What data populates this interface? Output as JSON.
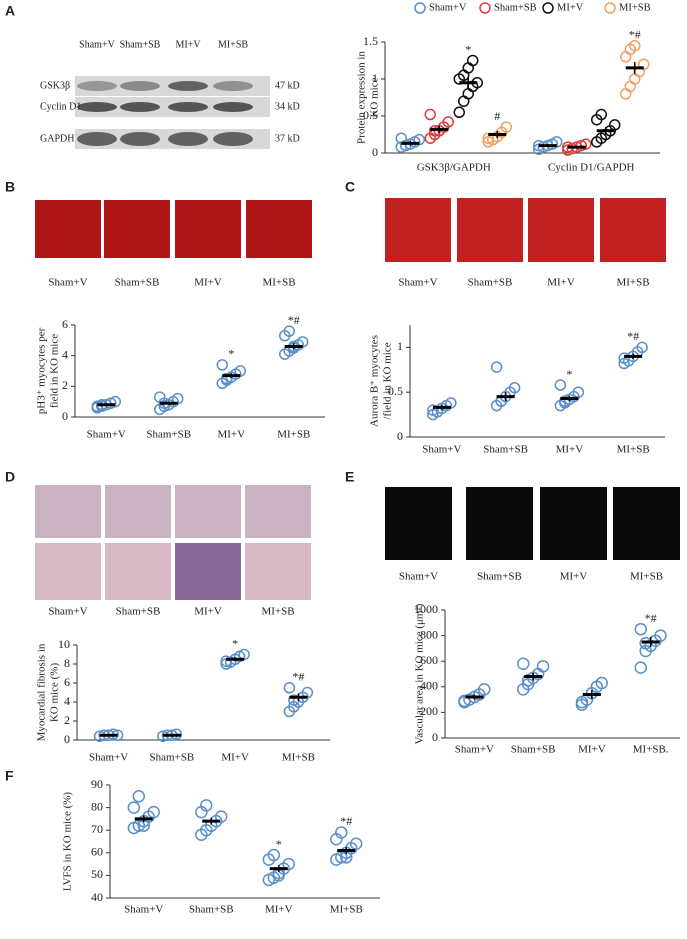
{
  "panel_letters": [
    "A",
    "B",
    "C",
    "D",
    "E",
    "F"
  ],
  "blot": {
    "lanes": [
      "Sham+V",
      "Sham+SB",
      "MI+V",
      "MI+SB"
    ],
    "rows": [
      "GSK3β",
      "Cyclin D1",
      "GAPDH"
    ],
    "sizes": [
      "47 kD",
      "34 kD",
      "37 kD"
    ]
  },
  "image_labels": [
    [
      "Sham+V",
      "Sham+SB",
      "MI+V",
      "MI+SB"
    ],
    [
      "Sham+V",
      "Sham+SB",
      "MI+V",
      "MI+SB"
    ],
    [
      "Sham+V",
      "Sham+SB",
      "MI+V",
      "MI+SB"
    ],
    [
      "Sham+V",
      "Sham+SB",
      "MI+V",
      "MI+SB"
    ]
  ],
  "chart_data": [
    {
      "type": "grouped-dot",
      "ylabel": [
        "Protein expression in",
        "KO mice"
      ],
      "ylim": [
        0,
        1.5
      ],
      "yticks": [
        0,
        0.5,
        1,
        1.5
      ],
      "categories": [
        "GSK3β/GAPDH",
        "Cyclin D1/GAPDH"
      ],
      "series": [
        {
          "name": "Sham+V",
          "color": "#5b8fc9",
          "points": [
            [
              0.08,
              0.1,
              0.12,
              0.15,
              0.18,
              0.2,
              0.1
            ],
            [
              0.05,
              0.08,
              0.1,
              0.12,
              0.15,
              0.1
            ]
          ],
          "means": [
            0.13,
            0.1
          ],
          "errors": [
            0.03,
            0.02
          ],
          "annotations": [
            null,
            null
          ]
        },
        {
          "name": "Sham+SB",
          "color": "#e03a3a",
          "points": [
            [
              0.2,
              0.25,
              0.3,
              0.35,
              0.42,
              0.52,
              0.3
            ],
            [
              0.04,
              0.06,
              0.08,
              0.1,
              0.12,
              0.08
            ]
          ],
          "means": [
            0.32,
            0.08
          ],
          "errors": [
            0.05,
            0.02
          ],
          "annotations": [
            null,
            null
          ]
        },
        {
          "name": "MI+V",
          "color": "#111111",
          "points": [
            [
              0.55,
              0.7,
              0.8,
              0.9,
              0.95,
              1.0,
              1.05,
              1.15,
              1.25
            ],
            [
              0.15,
              0.2,
              0.25,
              0.3,
              0.38,
              0.45,
              0.52
            ]
          ],
          "means": [
            0.95,
            0.3
          ],
          "errors": [
            0.08,
            0.05
          ],
          "annotations": [
            "*",
            null
          ]
        },
        {
          "name": "MI+SB",
          "color": "#f0a060",
          "points": [
            [
              0.15,
              0.18,
              0.22,
              0.28,
              0.35,
              0.2
            ],
            [
              0.8,
              0.9,
              1.0,
              1.1,
              1.2,
              1.3,
              1.4,
              1.45
            ]
          ],
          "means": [
            0.25,
            1.15
          ],
          "errors": [
            0.05,
            0.08
          ],
          "annotations": [
            "#",
            "*#"
          ]
        }
      ]
    },
    {
      "type": "dot",
      "ylabel": [
        "pH3⁺ myocytes per",
        "field in KO mice"
      ],
      "ylim": [
        0,
        6
      ],
      "yticks": [
        0,
        2,
        4,
        6
      ],
      "color": "#5b8fc9",
      "categories": [
        "Sham+V",
        "Sham+SB",
        "MI+V",
        "MI+SB"
      ],
      "points": [
        [
          0.6,
          0.7,
          0.8,
          0.9,
          1.0,
          0.7,
          0.8
        ],
        [
          0.5,
          0.7,
          0.8,
          1.0,
          1.2,
          1.3,
          0.9
        ],
        [
          2.2,
          2.4,
          2.6,
          2.8,
          3.0,
          3.4,
          2.5
        ],
        [
          4.1,
          4.3,
          4.5,
          4.7,
          4.9,
          5.3,
          5.6,
          4.6
        ]
      ],
      "means": [
        0.8,
        0.9,
        2.7,
        4.6
      ],
      "errors": [
        0.1,
        0.1,
        0.15,
        0.2
      ],
      "annotations": [
        null,
        null,
        "*",
        "*#"
      ]
    },
    {
      "type": "dot",
      "ylabel": [
        "Aurora B⁺ myocytes",
        "/field in KO mice"
      ],
      "ylim": [
        0,
        1.25
      ],
      "yticks": [
        0,
        0.5,
        1
      ],
      "color": "#5b8fc9",
      "categories": [
        "Sham+V",
        "Sham+SB",
        "MI+V",
        "MI+SB"
      ],
      "points": [
        [
          0.25,
          0.28,
          0.32,
          0.35,
          0.38,
          0.3
        ],
        [
          0.35,
          0.4,
          0.45,
          0.5,
          0.55,
          0.78,
          0.4
        ],
        [
          0.35,
          0.38,
          0.42,
          0.45,
          0.5,
          0.58,
          0.4
        ],
        [
          0.82,
          0.85,
          0.9,
          0.95,
          1.0,
          0.88
        ]
      ],
      "means": [
        0.33,
        0.45,
        0.43,
        0.9
      ],
      "errors": [
        0.03,
        0.05,
        0.03,
        0.03
      ],
      "annotations": [
        null,
        null,
        "*",
        "*#"
      ]
    },
    {
      "type": "dot",
      "ylabel": [
        "Myocardial fibrosis in",
        "KO mice (%)"
      ],
      "ylim": [
        0,
        10
      ],
      "yticks": [
        0,
        2,
        4,
        6,
        8,
        10
      ],
      "color": "#5b8fc9",
      "categories": [
        "Sham+V",
        "Sham+SB",
        "MI+V",
        "MI+SB"
      ],
      "points": [
        [
          0.4,
          0.5,
          0.5,
          0.6,
          0.5
        ],
        [
          0.4,
          0.5,
          0.5,
          0.6
        ],
        [
          8.0,
          8.2,
          8.5,
          8.8,
          9.0,
          8.3
        ],
        [
          3.0,
          3.5,
          4.0,
          4.5,
          5.0,
          5.5,
          4.2
        ]
      ],
      "means": [
        0.5,
        0.5,
        8.5,
        4.5
      ],
      "errors": [
        0.05,
        0.05,
        0.2,
        0.4
      ],
      "annotations": [
        null,
        null,
        "*",
        "*#"
      ]
    },
    {
      "type": "dot",
      "ylabel": [
        "Vascular area in KO mice (μm²)"
      ],
      "ylim": [
        0,
        1000
      ],
      "yticks": [
        0,
        200,
        400,
        600,
        800,
        1000
      ],
      "color": "#5b8fc9",
      "categories": [
        "Sham+V",
        "Sham+SB",
        "MI+V",
        "MI+SB."
      ],
      "points": [
        [
          280,
          300,
          320,
          340,
          380,
          290
        ],
        [
          380,
          420,
          470,
          500,
          560,
          580,
          450
        ],
        [
          260,
          300,
          350,
          400,
          430,
          280
        ],
        [
          550,
          680,
          720,
          760,
          800,
          850,
          740
        ]
      ],
      "means": [
        320,
        480,
        340,
        750
      ],
      "errors": [
        20,
        30,
        35,
        40
      ],
      "annotations": [
        null,
        null,
        null,
        "*#"
      ]
    },
    {
      "type": "dot",
      "ylabel": [
        "LVFS in KO mice (%)"
      ],
      "ylim": [
        40,
        90
      ],
      "yticks": [
        40,
        50,
        60,
        70,
        80,
        90
      ],
      "color": "#5b8fc9",
      "categories": [
        "Sham+V",
        "Sham+SB",
        "MI+V",
        "MI+SB"
      ],
      "points": [
        [
          71,
          72,
          74,
          76,
          78,
          80,
          85,
          72
        ],
        [
          68,
          70,
          72,
          74,
          76,
          78,
          81
        ],
        [
          48,
          49,
          51,
          53,
          55,
          57,
          59,
          50
        ],
        [
          57,
          58,
          60,
          62,
          64,
          66,
          69,
          58
        ]
      ],
      "means": [
        75,
        74,
        53,
        61
      ],
      "errors": [
        1.5,
        1.5,
        1.5,
        1.5
      ],
      "annotations": [
        null,
        null,
        "*",
        "*#"
      ]
    }
  ]
}
